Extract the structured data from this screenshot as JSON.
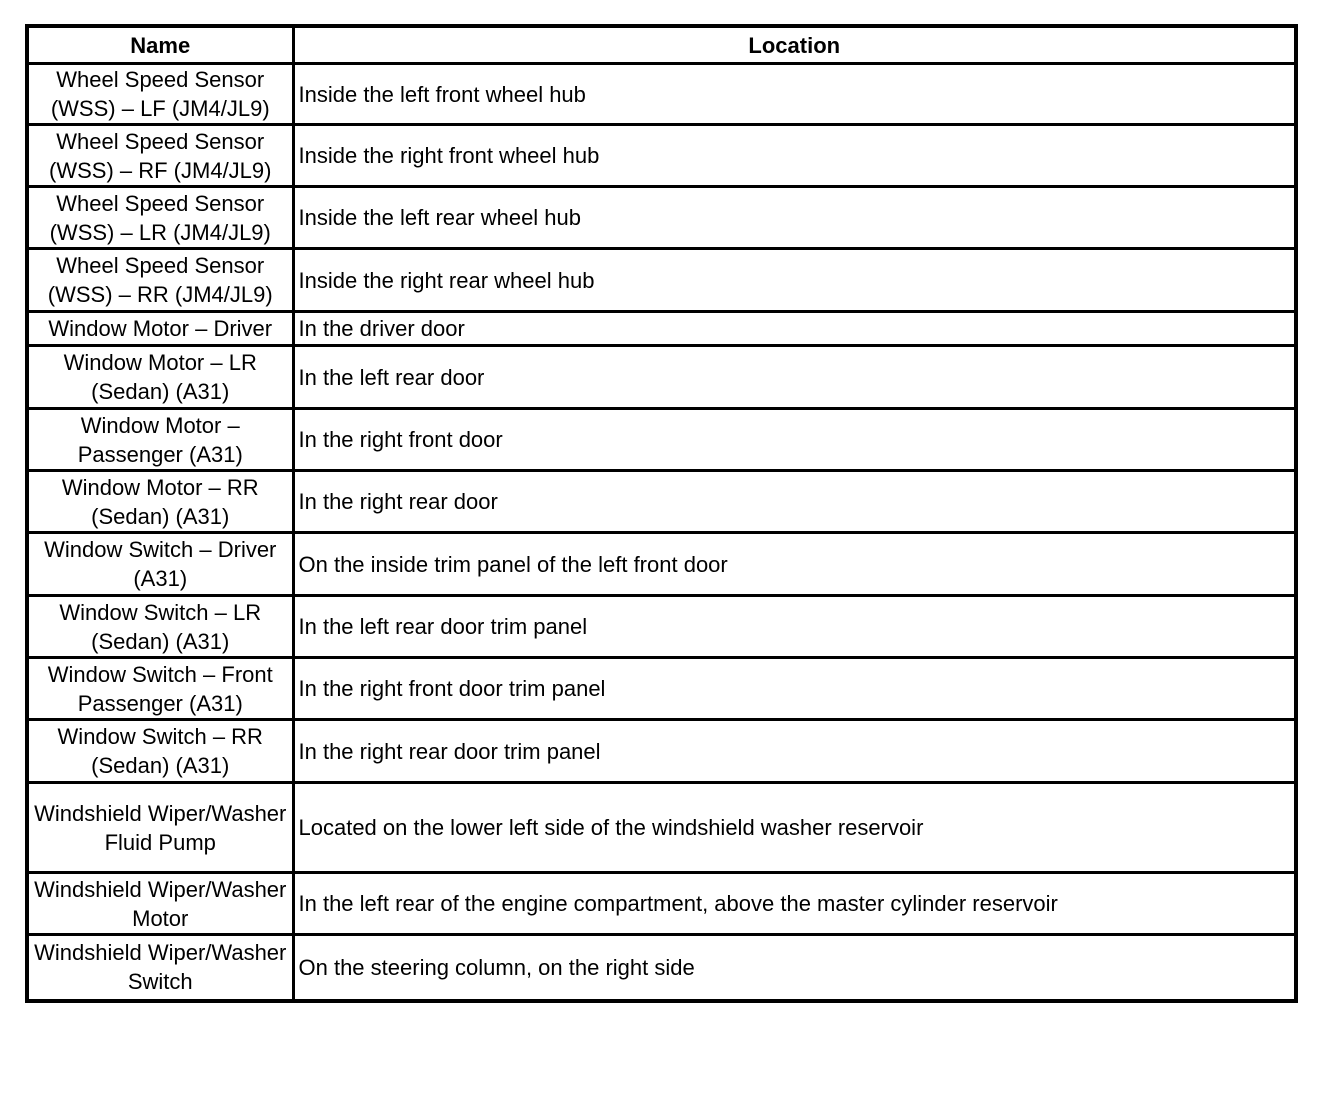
{
  "table": {
    "headers": [
      "Name",
      "Location"
    ],
    "rows": [
      {
        "name": "Wheel Speed Sensor (WSS) – LF (JM4/JL9)",
        "location": "Inside the left front wheel hub"
      },
      {
        "name": "Wheel Speed Sensor (WSS) – RF (JM4/JL9)",
        "location": "Inside the right front wheel hub"
      },
      {
        "name": "Wheel Speed Sensor (WSS) – LR (JM4/JL9)",
        "location": "Inside the left rear wheel hub"
      },
      {
        "name": "Wheel Speed Sensor (WSS) – RR (JM4/JL9)",
        "location": "Inside the right rear wheel hub"
      },
      {
        "name": "Window Motor – Driver",
        "location": "In the driver door"
      },
      {
        "name": "Window Motor – LR (Sedan) (A31)",
        "location": "In the left rear door"
      },
      {
        "name": "Window Motor – Passenger (A31)",
        "location": "In the right front door"
      },
      {
        "name": "Window Motor – RR (Sedan) (A31)",
        "location": "In the right rear door"
      },
      {
        "name": "Window Switch – Driver (A31)",
        "location": "On the inside trim panel of the left front door"
      },
      {
        "name": "Window Switch – LR (Sedan) (A31)",
        "location": "In the left rear door trim panel"
      },
      {
        "name": "Window Switch – Front Passenger (A31)",
        "location": "In the right front door trim panel"
      },
      {
        "name": "Window Switch – RR (Sedan) (A31)",
        "location": "In the right rear door trim panel"
      },
      {
        "name": "Windshield Wiper/Washer Fluid Pump",
        "location": "Located on the lower left side of the windshield washer reservoir"
      },
      {
        "name": "Windshield Wiper/Washer Motor",
        "location": "In the left rear of the engine compartment, above the master cylinder reservoir"
      },
      {
        "name": "Windshield Wiper/Washer Switch",
        "location": "On the steering column, on the right side"
      }
    ]
  }
}
